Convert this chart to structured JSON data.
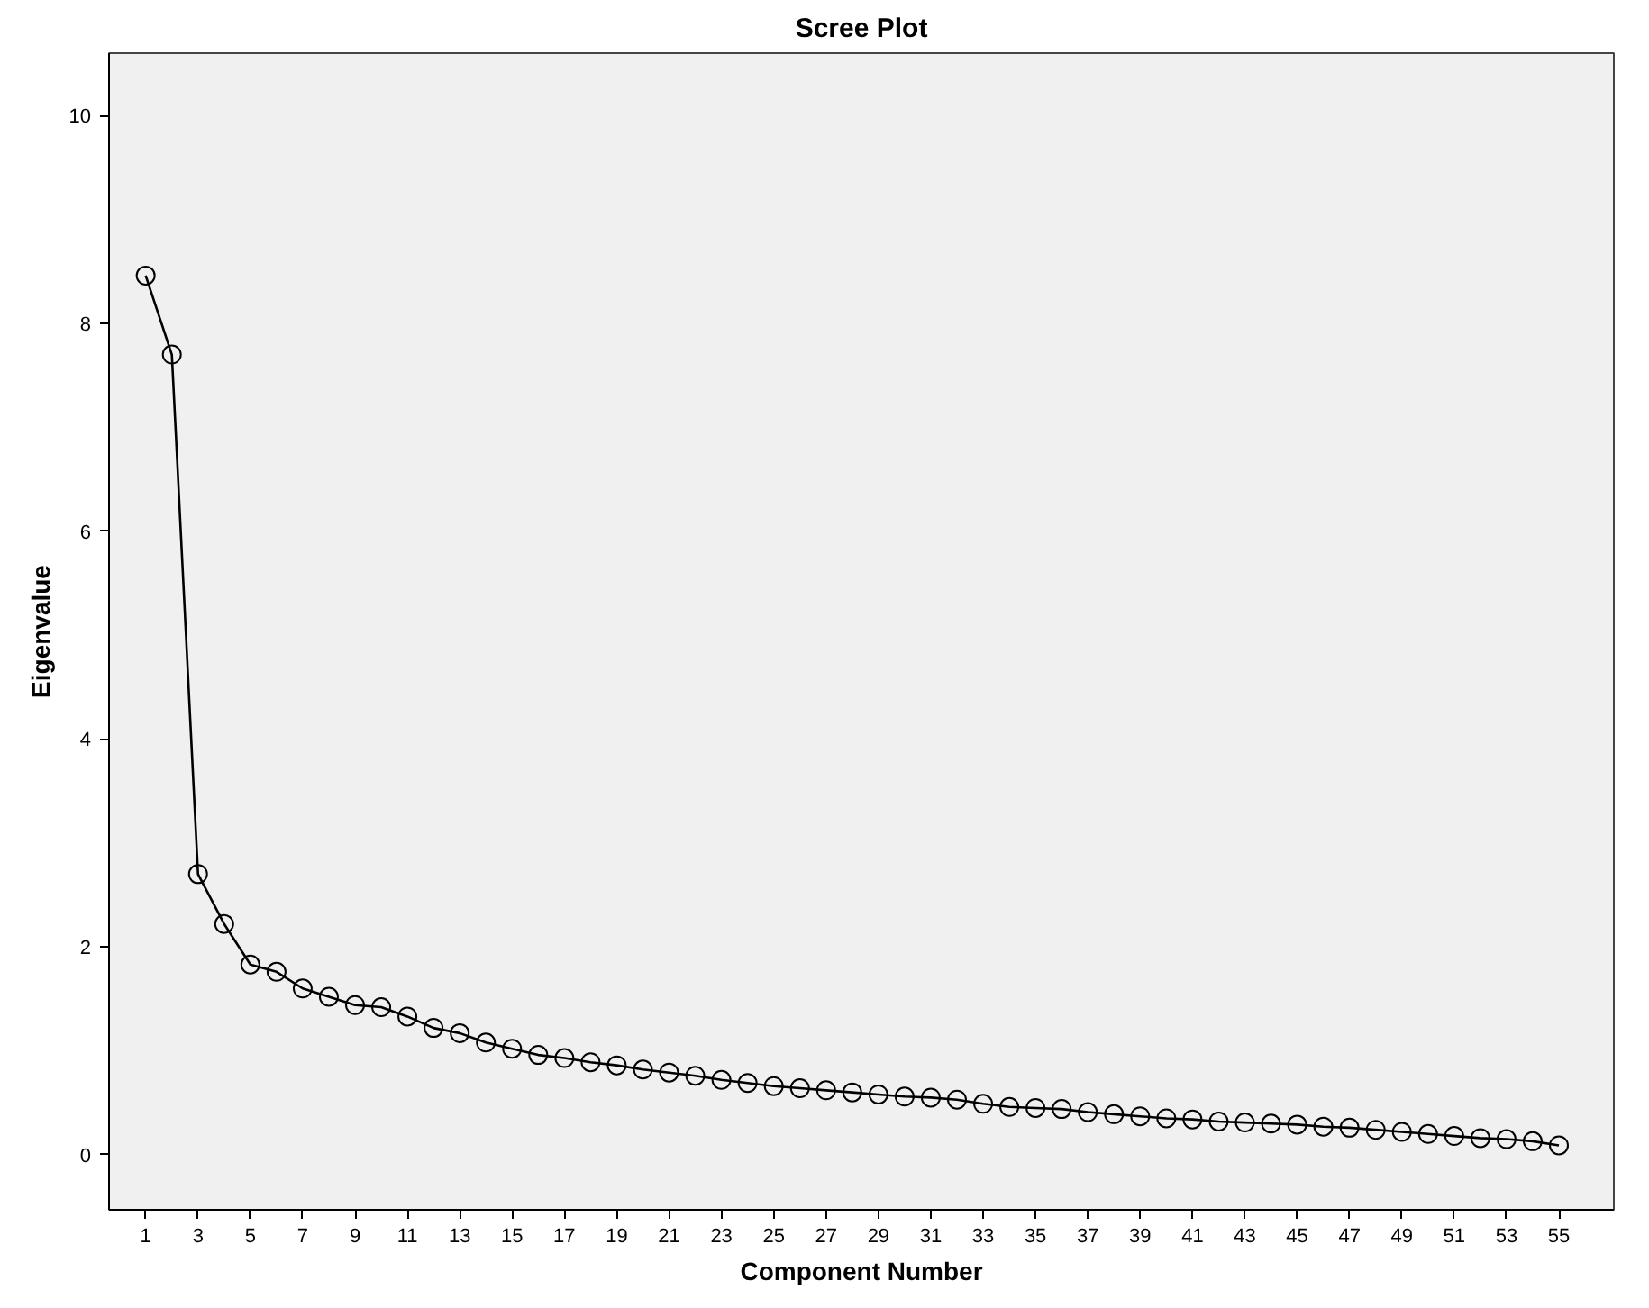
{
  "chart_data": {
    "type": "line",
    "title": "Scree Plot",
    "xlabel": "Component Number",
    "ylabel": "Eigenvalue",
    "x": [
      1,
      2,
      3,
      4,
      5,
      6,
      7,
      8,
      9,
      10,
      11,
      12,
      13,
      14,
      15,
      16,
      17,
      18,
      19,
      20,
      21,
      22,
      23,
      24,
      25,
      26,
      27,
      28,
      29,
      30,
      31,
      32,
      33,
      34,
      35,
      36,
      37,
      38,
      39,
      40,
      41,
      42,
      43,
      44,
      45,
      46,
      47,
      48,
      49,
      50,
      51,
      52,
      53,
      54,
      55
    ],
    "series": [
      {
        "color": "#000000",
        "values": [
          8.46,
          7.7,
          2.7,
          2.22,
          1.83,
          1.76,
          1.6,
          1.52,
          1.44,
          1.42,
          1.33,
          1.22,
          1.17,
          1.08,
          1.02,
          0.96,
          0.93,
          0.89,
          0.86,
          0.82,
          0.79,
          0.76,
          0.72,
          0.69,
          0.66,
          0.64,
          0.62,
          0.6,
          0.58,
          0.56,
          0.55,
          0.53,
          0.49,
          0.46,
          0.45,
          0.44,
          0.41,
          0.39,
          0.37,
          0.35,
          0.34,
          0.32,
          0.31,
          0.3,
          0.29,
          0.27,
          0.26,
          0.24,
          0.22,
          0.2,
          0.18,
          0.16,
          0.15,
          0.13,
          0.09
        ]
      }
    ],
    "xlim": [
      -0.4,
      57.1
    ],
    "ylim": [
      -0.53,
      10.6
    ],
    "xticks": [
      1,
      3,
      5,
      7,
      9,
      11,
      13,
      15,
      17,
      19,
      21,
      23,
      25,
      27,
      29,
      31,
      33,
      35,
      37,
      39,
      41,
      43,
      45,
      47,
      49,
      51,
      53,
      55
    ],
    "yticks": [
      0,
      2,
      4,
      6,
      8,
      10
    ],
    "grid": false,
    "marker": "circle",
    "line_style": "solid"
  }
}
